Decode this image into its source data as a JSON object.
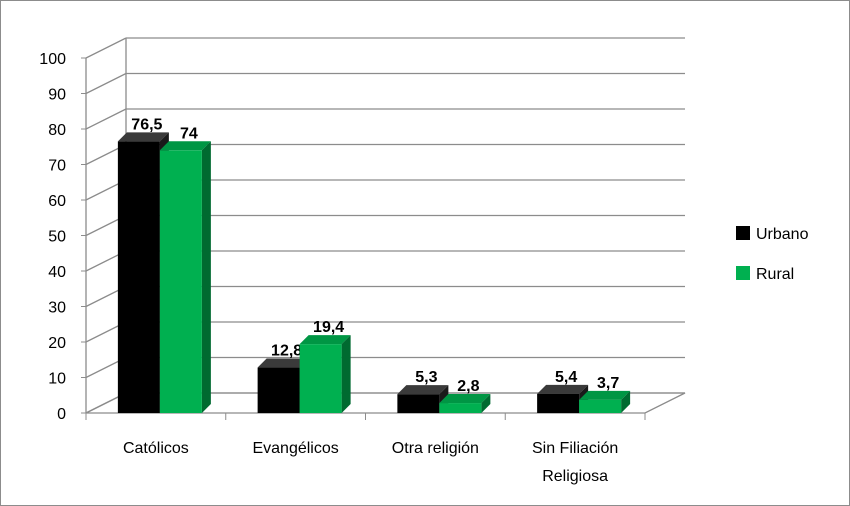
{
  "chart_data": {
    "type": "bar",
    "categories": [
      [
        "Católicos"
      ],
      [
        "Evangélicos"
      ],
      [
        "Otra religión"
      ],
      [
        "Sin Filiación",
        "Religiosa"
      ]
    ],
    "series": [
      {
        "name": "Urbano",
        "color": "#000000",
        "values": [
          76.5,
          12.8,
          5.3,
          5.4
        ],
        "labels": [
          "76,5",
          "12,8",
          "5,3",
          "5,4"
        ]
      },
      {
        "name": "Rural",
        "color": "#00b050",
        "values": [
          74,
          19.4,
          2.8,
          3.7
        ],
        "labels": [
          "74",
          "19,4",
          "2,8",
          "3,7"
        ]
      }
    ],
    "ylim": [
      0,
      100
    ],
    "yticks": [
      "0",
      "10",
      "20",
      "30",
      "40",
      "50",
      "60",
      "70",
      "80",
      "90",
      "100"
    ],
    "grid": true,
    "legend": "right",
    "three_d": true
  }
}
